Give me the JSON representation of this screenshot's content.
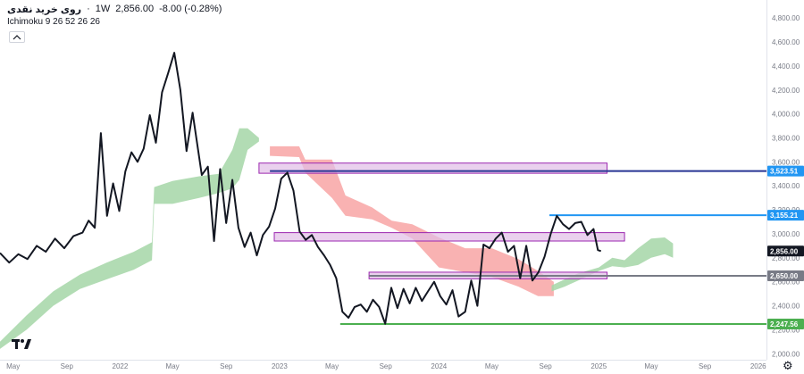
{
  "header": {
    "symbol": "روی خرید نقدی",
    "separator": "·",
    "interval": "1W",
    "last": "2,856.00",
    "change": "-8.00 (-0.28%)"
  },
  "indicator": {
    "label": "Ichimoku 9 26 52 26 26"
  },
  "colors": {
    "price_line": "#131722",
    "cloud_bull": "#a5d6a7",
    "cloud_bear": "#f8a5a5",
    "box_fill": "#e1bee7",
    "box_stroke": "#9c27b0",
    "level_blue": "#2196f3",
    "level_navy": "#283593",
    "level_gray": "#787b86",
    "level_green": "#4caf50",
    "last_price_bg": "#131722"
  },
  "icons": {
    "collapse": "chevron-up-icon",
    "logo": "tradingview-logo-icon",
    "settings": "gear-icon"
  },
  "chart_data": {
    "type": "line",
    "title": "روی خرید نقدی · 1W",
    "xlabel": "",
    "ylabel": "",
    "ylim": [
      1950,
      4950
    ],
    "xlim": [
      "2021-04-01",
      "2026-01-20"
    ],
    "y_ticks": [
      2000,
      2200,
      2400,
      2600,
      2800,
      3000,
      3200,
      3400,
      3600,
      3800,
      4000,
      4200,
      4400,
      4600,
      4800
    ],
    "y_tick_labels": [
      "2,000.00",
      "2,200.00",
      "2,400.00",
      "2,600.00",
      "2,800.00",
      "3,000.00",
      "3,200.00",
      "3,400.00",
      "3,600.00",
      "3,800.00",
      "4,000.00",
      "4,200.00",
      "4,400.00",
      "4,600.00",
      "4,800.00"
    ],
    "x_ticks": [
      {
        "date": "2021-05-01",
        "label": "May"
      },
      {
        "date": "2021-09-01",
        "label": "Sep"
      },
      {
        "date": "2022-01-01",
        "label": "2022"
      },
      {
        "date": "2022-05-01",
        "label": "May"
      },
      {
        "date": "2022-09-01",
        "label": "Sep"
      },
      {
        "date": "2023-01-01",
        "label": "2023"
      },
      {
        "date": "2023-05-01",
        "label": "May"
      },
      {
        "date": "2023-09-01",
        "label": "Sep"
      },
      {
        "date": "2024-01-01",
        "label": "2024"
      },
      {
        "date": "2024-05-01",
        "label": "May"
      },
      {
        "date": "2024-09-01",
        "label": "Sep"
      },
      {
        "date": "2025-01-01",
        "label": "2025"
      },
      {
        "date": "2025-05-01",
        "label": "May"
      },
      {
        "date": "2025-09-01",
        "label": "Sep"
      },
      {
        "date": "2026-01-01",
        "label": "2026"
      }
    ],
    "price": [
      [
        "2021-04-01",
        2840
      ],
      [
        "2021-04-22",
        2760
      ],
      [
        "2021-05-13",
        2830
      ],
      [
        "2021-06-03",
        2790
      ],
      [
        "2021-06-24",
        2900
      ],
      [
        "2021-07-15",
        2850
      ],
      [
        "2021-08-05",
        2960
      ],
      [
        "2021-08-26",
        2880
      ],
      [
        "2021-09-16",
        2980
      ],
      [
        "2021-10-07",
        3010
      ],
      [
        "2021-10-21",
        3110
      ],
      [
        "2021-11-04",
        3050
      ],
      [
        "2021-11-18",
        3840
      ],
      [
        "2021-12-02",
        3150
      ],
      [
        "2021-12-16",
        3420
      ],
      [
        "2021-12-30",
        3190
      ],
      [
        "2022-01-13",
        3520
      ],
      [
        "2022-01-27",
        3680
      ],
      [
        "2022-02-10",
        3600
      ],
      [
        "2022-02-24",
        3710
      ],
      [
        "2022-03-10",
        3990
      ],
      [
        "2022-03-24",
        3760
      ],
      [
        "2022-04-07",
        4180
      ],
      [
        "2022-04-21",
        4340
      ],
      [
        "2022-05-05",
        4510
      ],
      [
        "2022-05-19",
        4200
      ],
      [
        "2022-06-02",
        3690
      ],
      [
        "2022-06-16",
        4010
      ],
      [
        "2022-07-07",
        3490
      ],
      [
        "2022-07-21",
        3560
      ],
      [
        "2022-08-04",
        2940
      ],
      [
        "2022-08-18",
        3540
      ],
      [
        "2022-09-01",
        3090
      ],
      [
        "2022-09-15",
        3450
      ],
      [
        "2022-09-29",
        3050
      ],
      [
        "2022-10-13",
        2890
      ],
      [
        "2022-10-27",
        3010
      ],
      [
        "2022-11-10",
        2820
      ],
      [
        "2022-11-24",
        2990
      ],
      [
        "2022-12-08",
        3060
      ],
      [
        "2022-12-22",
        3210
      ],
      [
        "2023-01-05",
        3460
      ],
      [
        "2023-01-19",
        3510
      ],
      [
        "2023-02-02",
        3360
      ],
      [
        "2023-02-16",
        3020
      ],
      [
        "2023-03-02",
        2950
      ],
      [
        "2023-03-16",
        2990
      ],
      [
        "2023-03-30",
        2890
      ],
      [
        "2023-04-13",
        2820
      ],
      [
        "2023-04-27",
        2740
      ],
      [
        "2023-05-11",
        2630
      ],
      [
        "2023-05-25",
        2350
      ],
      [
        "2023-06-08",
        2300
      ],
      [
        "2023-06-22",
        2390
      ],
      [
        "2023-07-06",
        2410
      ],
      [
        "2023-07-20",
        2350
      ],
      [
        "2023-08-03",
        2450
      ],
      [
        "2023-08-17",
        2390
      ],
      [
        "2023-08-31",
        2250
      ],
      [
        "2023-09-14",
        2550
      ],
      [
        "2023-09-28",
        2380
      ],
      [
        "2023-10-12",
        2540
      ],
      [
        "2023-10-26",
        2420
      ],
      [
        "2023-11-09",
        2550
      ],
      [
        "2023-11-23",
        2440
      ],
      [
        "2023-12-07",
        2520
      ],
      [
        "2023-12-21",
        2600
      ],
      [
        "2024-01-04",
        2480
      ],
      [
        "2024-01-18",
        2410
      ],
      [
        "2024-02-01",
        2530
      ],
      [
        "2024-02-15",
        2310
      ],
      [
        "2024-03-01",
        2350
      ],
      [
        "2024-03-15",
        2610
      ],
      [
        "2024-03-29",
        2400
      ],
      [
        "2024-04-12",
        2910
      ],
      [
        "2024-04-26",
        2880
      ],
      [
        "2024-05-10",
        2960
      ],
      [
        "2024-05-24",
        3010
      ],
      [
        "2024-06-07",
        2850
      ],
      [
        "2024-06-21",
        2900
      ],
      [
        "2024-07-05",
        2630
      ],
      [
        "2024-07-19",
        2900
      ],
      [
        "2024-08-02",
        2610
      ],
      [
        "2024-08-16",
        2680
      ],
      [
        "2024-08-30",
        2810
      ],
      [
        "2024-09-13",
        3000
      ],
      [
        "2024-09-27",
        3150
      ],
      [
        "2024-10-11",
        3080
      ],
      [
        "2024-10-25",
        3040
      ],
      [
        "2024-11-08",
        3090
      ],
      [
        "2024-11-22",
        3100
      ],
      [
        "2024-12-06",
        2990
      ],
      [
        "2024-12-20",
        3040
      ],
      [
        "2024-12-30",
        2864
      ],
      [
        "2025-01-06",
        2856
      ]
    ],
    "cloud_bull": {
      "dates": [
        "2021-04-01",
        "2021-06-01",
        "2021-08-01",
        "2021-10-01",
        "2021-12-01",
        "2022-02-01",
        "2022-03-15",
        "2022-03-20",
        "2022-05-01",
        "2022-07-01",
        "2022-08-15",
        "2022-09-15",
        "2022-10-01",
        "2022-10-20",
        "2022-11-15"
      ],
      "upper": [
        2100,
        2320,
        2520,
        2660,
        2760,
        2850,
        2930,
        3390,
        3440,
        3480,
        3500,
        3700,
        3880,
        3880,
        3800
      ],
      "lower": [
        2040,
        2200,
        2400,
        2540,
        2620,
        2700,
        2780,
        3250,
        3250,
        3300,
        3340,
        3380,
        3450,
        3700,
        3770
      ]
    },
    "cloud_bear": {
      "dates": [
        "2022-12-10",
        "2023-02-15",
        "2023-03-01",
        "2023-05-01",
        "2023-06-01",
        "2023-08-01",
        "2023-09-15",
        "2023-11-01",
        "2024-01-01",
        "2024-03-01",
        "2024-05-01",
        "2024-07-01",
        "2024-08-15",
        "2024-09-20"
      ],
      "upper": [
        3730,
        3730,
        3620,
        3620,
        3320,
        3220,
        3110,
        3080,
        2970,
        2880,
        2880,
        2790,
        2690,
        2600
      ],
      "lower": [
        3650,
        3640,
        3510,
        3300,
        3150,
        3120,
        3050,
        2960,
        2720,
        2680,
        2640,
        2560,
        2480,
        2480
      ]
    },
    "cloud_bull_2": {
      "dates": [
        "2024-09-15",
        "2024-10-15",
        "2024-11-15",
        "2025-01-01",
        "2025-02-01",
        "2025-03-01",
        "2025-04-01",
        "2025-05-01",
        "2025-06-01",
        "2025-06-20"
      ],
      "upper": [
        2570,
        2620,
        2670,
        2720,
        2800,
        2780,
        2880,
        2960,
        2970,
        2920
      ],
      "lower": [
        2520,
        2560,
        2610,
        2690,
        2730,
        2720,
        2740,
        2800,
        2830,
        2800
      ]
    },
    "boxes": [
      {
        "name": "resistance-zone-3520",
        "x1": "2022-11-15",
        "x2": "2025-01-20",
        "y1": 3505,
        "y2": 3590
      },
      {
        "name": "zone-3000",
        "x1": "2022-12-20",
        "x2": "2025-03-01",
        "y1": 2940,
        "y2": 3010
      },
      {
        "name": "zone-2650",
        "x1": "2023-07-25",
        "x2": "2025-01-20",
        "y1": 2625,
        "y2": 2680
      }
    ],
    "levels": [
      {
        "name": "level-3523",
        "value": 3523.51,
        "label": "3,523.51",
        "from": "2022-12-10",
        "color": "#283593",
        "tag_color": "#2196f3"
      },
      {
        "name": "level-3155",
        "value": 3155.21,
        "label": "3,155.21",
        "from": "2024-09-10",
        "color": "#2196f3",
        "tag_color": "#2196f3"
      },
      {
        "name": "level-2650",
        "value": 2650.0,
        "label": "2,650.00",
        "from": "2023-07-25",
        "color": "#787b86",
        "tag_color": "#787b86"
      },
      {
        "name": "level-2247",
        "value": 2247.56,
        "label": "2,247.56",
        "from": "2023-05-20",
        "color": "#4caf50",
        "tag_color": "#4caf50"
      }
    ],
    "last_price": {
      "value": 2856.0,
      "label": "2,856.00"
    },
    "grid": false
  }
}
